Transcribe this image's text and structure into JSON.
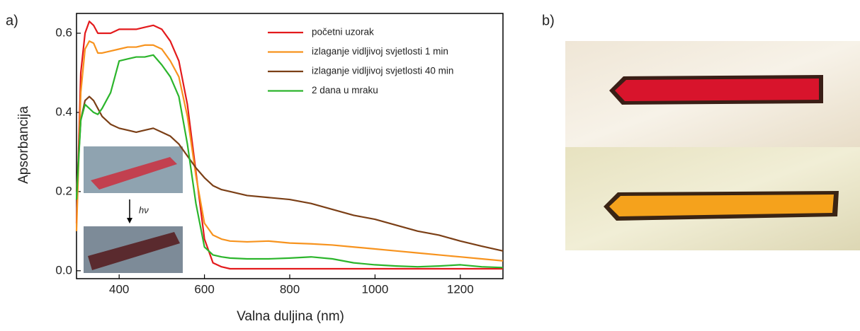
{
  "chart_data": {
    "type": "line",
    "panel_labels": [
      "a)",
      "b)"
    ],
    "annotation": "hν",
    "x_label": "Valna duljina (nm)",
    "y_label": "Apsorbancija",
    "x": [
      300,
      310,
      320,
      330,
      340,
      350,
      360,
      380,
      400,
      420,
      440,
      460,
      480,
      500,
      520,
      540,
      560,
      580,
      600,
      620,
      640,
      660,
      700,
      750,
      800,
      850,
      900,
      950,
      1000,
      1050,
      1100,
      1150,
      1200,
      1250,
      1300
    ],
    "series": [
      {
        "name": "početni uzorak",
        "color": "#e31a1c",
        "values": [
          0.12,
          0.5,
          0.6,
          0.63,
          0.62,
          0.6,
          0.6,
          0.6,
          0.61,
          0.61,
          0.61,
          0.615,
          0.62,
          0.61,
          0.58,
          0.53,
          0.42,
          0.25,
          0.08,
          0.02,
          0.01,
          0.005,
          0.005,
          0.005,
          0.005,
          0.005,
          0.005,
          0.005,
          0.005,
          0.005,
          0.005,
          0.005,
          0.005,
          0.005,
          0.005
        ]
      },
      {
        "name": "izlaganje vidljivoj svjetlosti 1 min",
        "color": "#f7931e",
        "values": [
          0.1,
          0.45,
          0.56,
          0.58,
          0.575,
          0.55,
          0.55,
          0.555,
          0.56,
          0.565,
          0.565,
          0.57,
          0.57,
          0.56,
          0.53,
          0.49,
          0.39,
          0.24,
          0.12,
          0.09,
          0.08,
          0.075,
          0.073,
          0.075,
          0.07,
          0.068,
          0.065,
          0.06,
          0.055,
          0.05,
          0.045,
          0.04,
          0.035,
          0.03,
          0.025
        ]
      },
      {
        "name": "izlaganje vidljivoj svjetlosti 40 min",
        "color": "#7b3f16",
        "values": [
          0.2,
          0.38,
          0.43,
          0.44,
          0.43,
          0.41,
          0.39,
          0.37,
          0.36,
          0.355,
          0.35,
          0.355,
          0.36,
          0.35,
          0.34,
          0.32,
          0.29,
          0.26,
          0.235,
          0.215,
          0.205,
          0.2,
          0.19,
          0.185,
          0.18,
          0.17,
          0.155,
          0.14,
          0.13,
          0.115,
          0.1,
          0.09,
          0.075,
          0.062,
          0.05
        ]
      },
      {
        "name": "2 dana u mraku",
        "color": "#2cb52c",
        "values": [
          0.18,
          0.38,
          0.42,
          0.41,
          0.4,
          0.395,
          0.41,
          0.45,
          0.53,
          0.535,
          0.54,
          0.54,
          0.545,
          0.52,
          0.49,
          0.44,
          0.32,
          0.17,
          0.06,
          0.04,
          0.035,
          0.032,
          0.03,
          0.03,
          0.032,
          0.035,
          0.03,
          0.02,
          0.015,
          0.012,
          0.01,
          0.012,
          0.015,
          0.01,
          0.008
        ]
      }
    ],
    "xlim": [
      300,
      1300
    ],
    "ylim": [
      -0.02,
      0.65
    ],
    "xticks": [
      400,
      600,
      800,
      1000,
      1200
    ],
    "yticks": [
      {
        "value": 0,
        "label": "0.0"
      },
      0.2,
      0.4,
      0.6
    ],
    "legend": "top-right"
  }
}
